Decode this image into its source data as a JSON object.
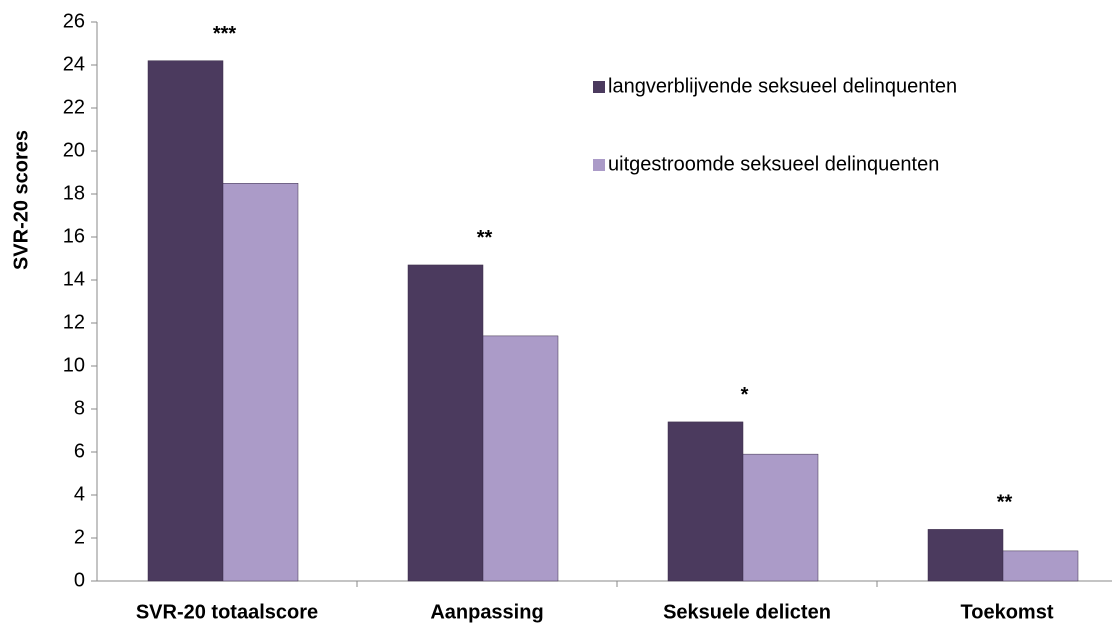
{
  "chart_data": {
    "type": "bar",
    "ylabel": "SVR-20 scores",
    "categories": [
      "SVR-20 totaalscore",
      "Aanpassing",
      "Seksuele delicten",
      "Toekomst"
    ],
    "series": [
      {
        "name": "langverblijvende seksueel delinquenten",
        "color": "#4b3a5e",
        "values": [
          24.2,
          14.7,
          7.4,
          2.4
        ]
      },
      {
        "name": "uitgestroomde seksueel delinquenten",
        "color": "#ab9bc8",
        "values": [
          18.5,
          11.4,
          5.9,
          1.4
        ]
      }
    ],
    "annotations": [
      "***",
      "**",
      "*",
      "**"
    ],
    "ylim": [
      0,
      26
    ],
    "yticks": [
      0,
      2,
      4,
      6,
      8,
      10,
      12,
      14,
      16,
      18,
      20,
      22,
      24,
      26
    ],
    "grid": false,
    "legend": "top-right"
  }
}
